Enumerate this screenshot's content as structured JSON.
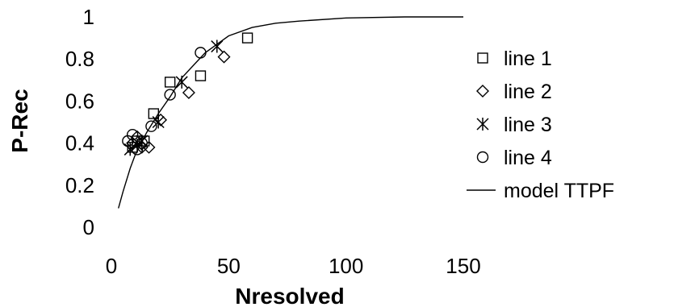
{
  "chart_data": {
    "type": "scatter",
    "title": "",
    "xlabel": "Nresolved",
    "ylabel": "P-Rec",
    "xlim": [
      0,
      150
    ],
    "ylim": [
      0,
      1
    ],
    "xticks": [
      "0",
      "50",
      "100",
      "150"
    ],
    "yticks": [
      "0",
      "0.2",
      "0.4",
      "0.6",
      "0.8",
      "1"
    ],
    "grid": false,
    "legend_position": "right",
    "series": [
      {
        "name": "line 1",
        "marker": "square",
        "points": [
          {
            "x": 9,
            "y": 0.38
          },
          {
            "x": 11,
            "y": 0.41
          },
          {
            "x": 14,
            "y": 0.41
          },
          {
            "x": 18,
            "y": 0.54
          },
          {
            "x": 25,
            "y": 0.69
          },
          {
            "x": 38,
            "y": 0.72
          },
          {
            "x": 58,
            "y": 0.9
          }
        ]
      },
      {
        "name": "line 2",
        "marker": "diamond",
        "points": [
          {
            "x": 9,
            "y": 0.4
          },
          {
            "x": 11,
            "y": 0.43
          },
          {
            "x": 13,
            "y": 0.38
          },
          {
            "x": 16,
            "y": 0.38
          },
          {
            "x": 21,
            "y": 0.51
          },
          {
            "x": 33,
            "y": 0.64
          },
          {
            "x": 48,
            "y": 0.81
          }
        ]
      },
      {
        "name": "line 3",
        "marker": "asterisk",
        "points": [
          {
            "x": 8,
            "y": 0.37
          },
          {
            "x": 11,
            "y": 0.39
          },
          {
            "x": 13,
            "y": 0.41
          },
          {
            "x": 20,
            "y": 0.5
          },
          {
            "x": 30,
            "y": 0.69
          },
          {
            "x": 45,
            "y": 0.86
          }
        ]
      },
      {
        "name": "line 4",
        "marker": "circle",
        "points": [
          {
            "x": 7,
            "y": 0.41
          },
          {
            "x": 9,
            "y": 0.44
          },
          {
            "x": 11,
            "y": 0.37
          },
          {
            "x": 13,
            "y": 0.4
          },
          {
            "x": 17,
            "y": 0.48
          },
          {
            "x": 25,
            "y": 0.63
          },
          {
            "x": 38,
            "y": 0.83
          }
        ]
      },
      {
        "name": "model TTPF",
        "type": "line",
        "points": [
          {
            "x": 3,
            "y": 0.09
          },
          {
            "x": 5,
            "y": 0.17
          },
          {
            "x": 8,
            "y": 0.28
          },
          {
            "x": 10,
            "y": 0.34
          },
          {
            "x": 15,
            "y": 0.45
          },
          {
            "x": 20,
            "y": 0.54
          },
          {
            "x": 25,
            "y": 0.62
          },
          {
            "x": 30,
            "y": 0.71
          },
          {
            "x": 35,
            "y": 0.77
          },
          {
            "x": 40,
            "y": 0.83
          },
          {
            "x": 45,
            "y": 0.87
          },
          {
            "x": 50,
            "y": 0.91
          },
          {
            "x": 60,
            "y": 0.95
          },
          {
            "x": 70,
            "y": 0.97
          },
          {
            "x": 80,
            "y": 0.98
          },
          {
            "x": 100,
            "y": 0.995
          },
          {
            "x": 125,
            "y": 1.0
          },
          {
            "x": 150,
            "y": 1.0
          }
        ]
      }
    ]
  }
}
